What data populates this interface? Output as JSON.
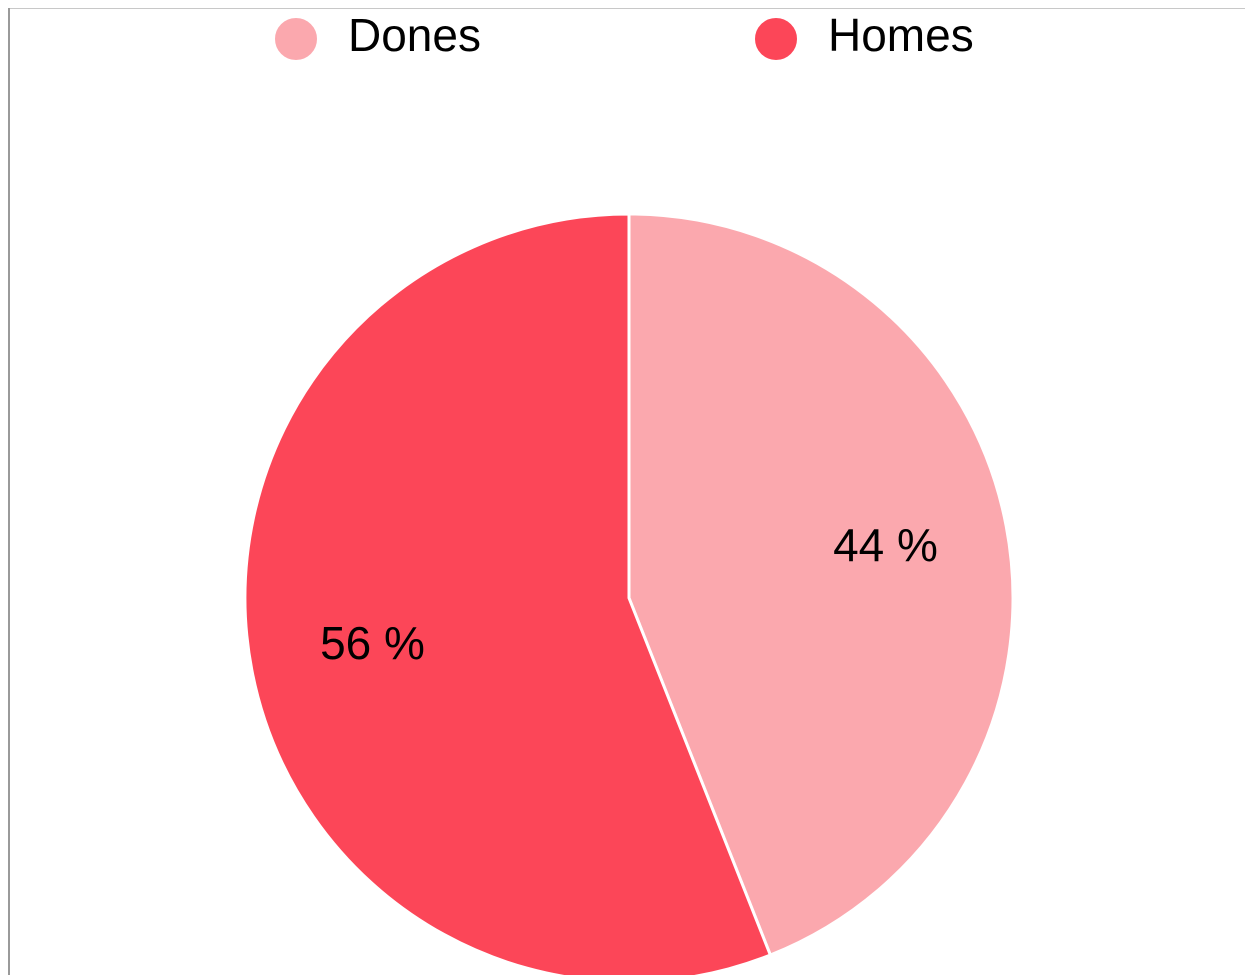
{
  "chart_data": {
    "type": "pie",
    "title": "",
    "legend_position": "top",
    "slices": [
      {
        "name": "Dones",
        "value": 44,
        "label": "44 %",
        "color": "#fba8ae"
      },
      {
        "name": "Homes",
        "value": 56,
        "label": "56 %",
        "color": "#fc4658"
      }
    ]
  }
}
